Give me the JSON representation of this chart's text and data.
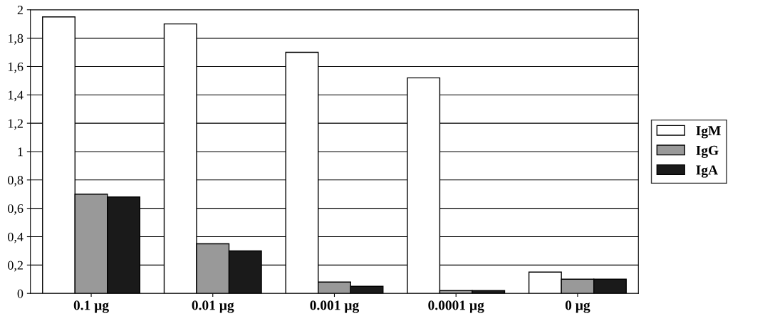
{
  "chart_data": {
    "type": "bar",
    "categories": [
      "0.1 µg",
      "0.01 µg",
      "0.001 µg",
      "0.0001 µg",
      "0 µg"
    ],
    "series": [
      {
        "name": "IgM",
        "color": "#ffffff",
        "values": [
          1.95,
          1.9,
          1.7,
          1.52,
          0.15
        ]
      },
      {
        "name": "IgG",
        "color": "#999999",
        "values": [
          0.7,
          0.35,
          0.08,
          0.02,
          0.1
        ]
      },
      {
        "name": "IgA",
        "color": "#1a1a1a",
        "values": [
          0.68,
          0.3,
          0.05,
          0.02,
          0.1
        ]
      }
    ],
    "ylim": [
      0,
      2
    ],
    "yticks": [
      {
        "value": 0,
        "label": "0"
      },
      {
        "value": 0.2,
        "label": "0,2"
      },
      {
        "value": 0.4,
        "label": "0,4"
      },
      {
        "value": 0.6,
        "label": "0,6"
      },
      {
        "value": 0.8,
        "label": "0,8"
      },
      {
        "value": 1,
        "label": "1"
      },
      {
        "value": 1.2,
        "label": "1,2"
      },
      {
        "value": 1.4,
        "label": "1,4"
      },
      {
        "value": 1.6,
        "label": "1,6"
      },
      {
        "value": 1.8,
        "label": "1,8"
      },
      {
        "value": 2,
        "label": "2"
      }
    ],
    "grid": "y",
    "legend": "right"
  }
}
